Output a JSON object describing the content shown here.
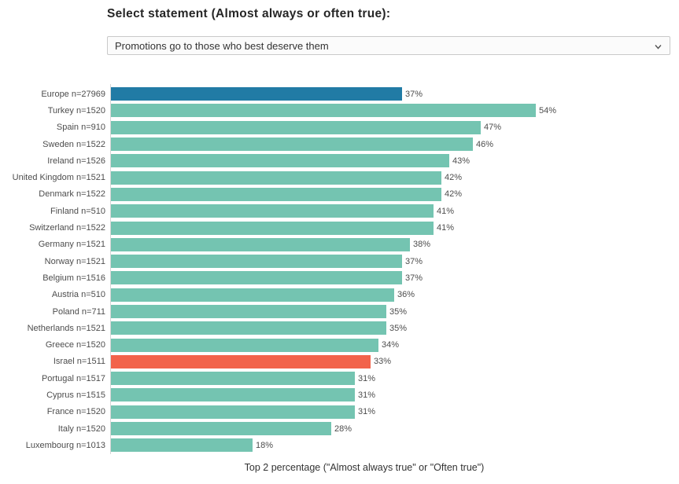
{
  "header": {
    "title": "Select statement (Almost always or often true):",
    "select": {
      "value": "Promotions go to those who best deserve them",
      "icon": "chevron-down-icon"
    }
  },
  "chart_data": {
    "type": "bar",
    "orientation": "horizontal",
    "title": "",
    "xlabel": "Top 2 percentage (\"Almost always true\" or \"Often true\")",
    "ylabel": "",
    "xlim": [
      0,
      64
    ],
    "grid": false,
    "legend": false,
    "value_suffix": "%",
    "categories": [
      "Europe n=27969",
      "Turkey n=1520",
      "Spain n=910",
      "Sweden n=1522",
      "Ireland n=1526",
      "United Kingdom n=1521",
      "Denmark n=1522",
      "Finland n=510",
      "Switzerland n=1522",
      "Germany n=1521",
      "Norway n=1521",
      "Belgium n=1516",
      "Austria n=510",
      "Poland n=711",
      "Netherlands n=1521",
      "Greece n=1520",
      "Israel n=1511",
      "Portugal n=1517",
      "Cyprus n=1515",
      "France n=1520",
      "Italy n=1520",
      "Luxembourg n=1013"
    ],
    "values": [
      37,
      54,
      47,
      46,
      43,
      42,
      42,
      41,
      41,
      38,
      37,
      37,
      36,
      35,
      35,
      34,
      33,
      31,
      31,
      31,
      28,
      18
    ],
    "colors": {
      "default_bar": "#74c4b1",
      "highlight_europe": "#217ba5",
      "highlight_israel": "#f2634b",
      "axis_line": "#d6d6d6",
      "label_text": "#4d4d4d"
    },
    "highlight_colors": {
      "0": "#217ba5",
      "16": "#f2634b"
    }
  }
}
